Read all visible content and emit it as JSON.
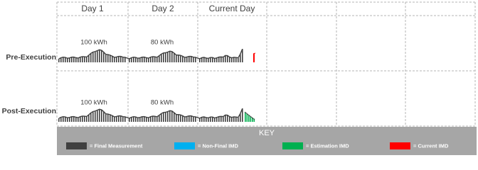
{
  "header": {
    "columns": [
      "Day 1",
      "Day 2",
      "Current Day"
    ]
  },
  "rows": [
    {
      "label": "Pre-Execution",
      "annotations": [
        "100 kWh",
        "80 kWh"
      ]
    },
    {
      "label": "Post-Execution",
      "annotations": [
        "100 kWh",
        "80 kWh"
      ]
    }
  ],
  "key": {
    "title": "KEY",
    "items": [
      {
        "label": "= Final Measurement",
        "color": "#404040"
      },
      {
        "label": "= Non-Final IMD",
        "color": "#00b0f0"
      },
      {
        "label": "= Estimation IMD",
        "color": "#00b050"
      },
      {
        "label": "= Current IMD",
        "color": "#ff0000"
      }
    ]
  }
}
